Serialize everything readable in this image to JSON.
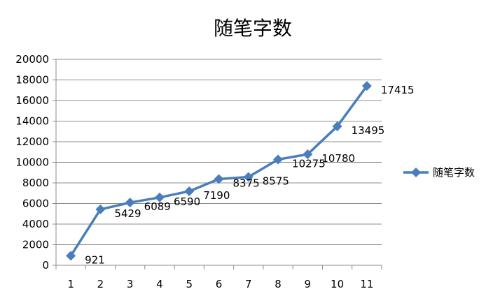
{
  "chart_data": {
    "type": "line",
    "title": "随笔字数",
    "xlabel": "",
    "ylabel": "",
    "x": [
      "1",
      "2",
      "3",
      "4",
      "5",
      "6",
      "7",
      "8",
      "9",
      "10",
      "11"
    ],
    "series": [
      {
        "name": "随笔字数",
        "values": [
          921,
          5429,
          6089,
          6590,
          7190,
          8375,
          8575,
          10275,
          10780,
          13495,
          17415
        ],
        "color": "#4A7EBB"
      }
    ],
    "data_labels": [
      "921",
      "5429",
      "6089",
      "6590",
      "7190",
      "8375",
      "8575",
      "10275",
      "10780",
      "13495",
      "17415"
    ],
    "ylim": [
      0,
      20000
    ],
    "yticks": [
      "0",
      "2000",
      "4000",
      "6000",
      "8000",
      "10000",
      "12000",
      "14000",
      "16000",
      "18000",
      "20000"
    ],
    "grid": true,
    "legend_position": "right",
    "marker": "diamond"
  }
}
